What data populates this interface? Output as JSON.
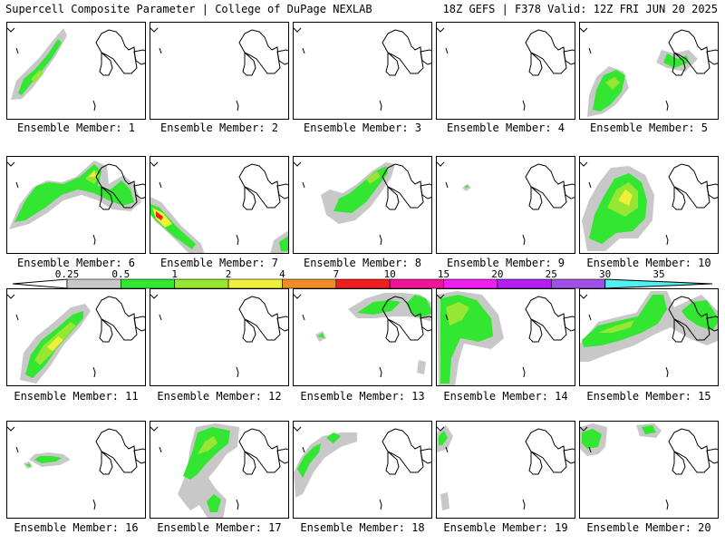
{
  "header": {
    "left": "Supercell Composite Parameter | College of DuPage NEXLAB",
    "right": "18Z GEFS | F378 Valid: 12Z FRI JUN 20 2025"
  },
  "legend": {
    "labels": [
      "0.25",
      "0.5",
      "1",
      "2",
      "4",
      "7",
      "10",
      "15",
      "20",
      "25",
      "30",
      "35"
    ],
    "colors": [
      "#c8c8c8",
      "#32e632",
      "#96e632",
      "#f0f03c",
      "#f08c28",
      "#f01e1e",
      "#f01496",
      "#f01ef0",
      "#b41ef0",
      "#a050e6",
      "#50f0f0"
    ]
  },
  "panels": [
    {
      "label": "Ensemble Member: 1"
    },
    {
      "label": "Ensemble Member: 2"
    },
    {
      "label": "Ensemble Member: 3"
    },
    {
      "label": "Ensemble Member: 4"
    },
    {
      "label": "Ensemble Member: 5"
    },
    {
      "label": "Ensemble Member: 6"
    },
    {
      "label": "Ensemble Member: 7"
    },
    {
      "label": "Ensemble Member: 8"
    },
    {
      "label": "Ensemble Member: 9"
    },
    {
      "label": "Ensemble Member: 10"
    },
    {
      "label": "Ensemble Member: 11"
    },
    {
      "label": "Ensemble Member: 12"
    },
    {
      "label": "Ensemble Member: 13"
    },
    {
      "label": "Ensemble Member: 14"
    },
    {
      "label": "Ensemble Member: 15"
    },
    {
      "label": "Ensemble Member: 16"
    },
    {
      "label": "Ensemble Member: 17"
    },
    {
      "label": "Ensemble Member: 18"
    },
    {
      "label": "Ensemble Member: 19"
    },
    {
      "label": "Ensemble Member: 20"
    }
  ]
}
